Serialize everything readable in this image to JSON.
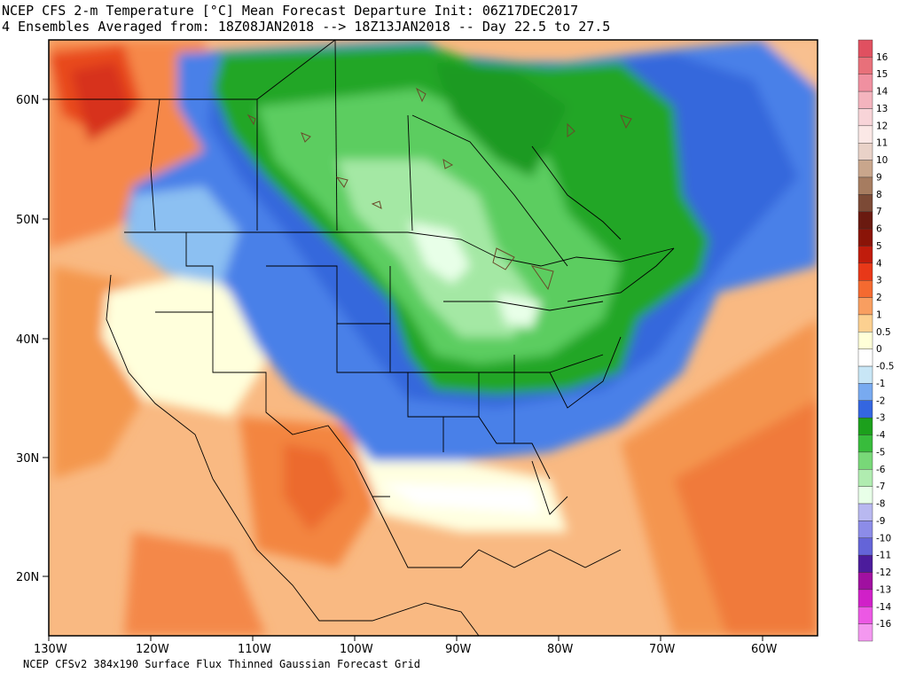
{
  "title_line1": "NCEP CFS 2-m Temperature [°C] Mean Forecast Departure Init: 06Z17DEC2017",
  "title_line2": "4 Ensembles Averaged from: 18Z08JAN2018 --> 18Z13JAN2018 -- Day 22.5 to 27.5",
  "footer": "NCEP CFSv2 384x190 Surface Flux Thinned Gaussian Forecast Grid",
  "lat_labels": [
    "60N",
    "50N",
    "40N",
    "30N",
    "20N"
  ],
  "lon_labels": [
    "130W",
    "120W",
    "110W",
    "100W",
    "90W",
    "80W",
    "70W",
    "60W"
  ],
  "colorbar": {
    "levels": [
      "16",
      "15",
      "14",
      "13",
      "12",
      "11",
      "10",
      "9",
      "8",
      "7",
      "6",
      "5",
      "4",
      "3",
      "2",
      "1",
      "0.5",
      "0",
      "-0.5",
      "-1",
      "-2",
      "-3",
      "-4",
      "-5",
      "-6",
      "-7",
      "-8",
      "-9",
      "-10",
      "-11",
      "-12",
      "-13",
      "-14",
      "-16"
    ],
    "colors": [
      "#e05060",
      "#e8707a",
      "#f090a0",
      "#f4b4be",
      "#f8d4d8",
      "#fbe8e6",
      "#e9d2c8",
      "#c9a68c",
      "#a67c60",
      "#7c4a36",
      "#6a1a10",
      "#8a1408",
      "#c01c0c",
      "#e83818",
      "#f46a30",
      "#f89e60",
      "#fcd090",
      "#ffffd8",
      "#ffffff",
      "#c8e6f6",
      "#78aaf0",
      "#3466e0",
      "#1ca01c",
      "#38bc3c",
      "#78d878",
      "#b0ecb0",
      "#e8ffe8",
      "#b8b8f0",
      "#8c8ce8",
      "#6464d8",
      "#4c1c9c",
      "#a010a0",
      "#d020c8",
      "#ec58e4",
      "#f498f0"
    ]
  }
}
